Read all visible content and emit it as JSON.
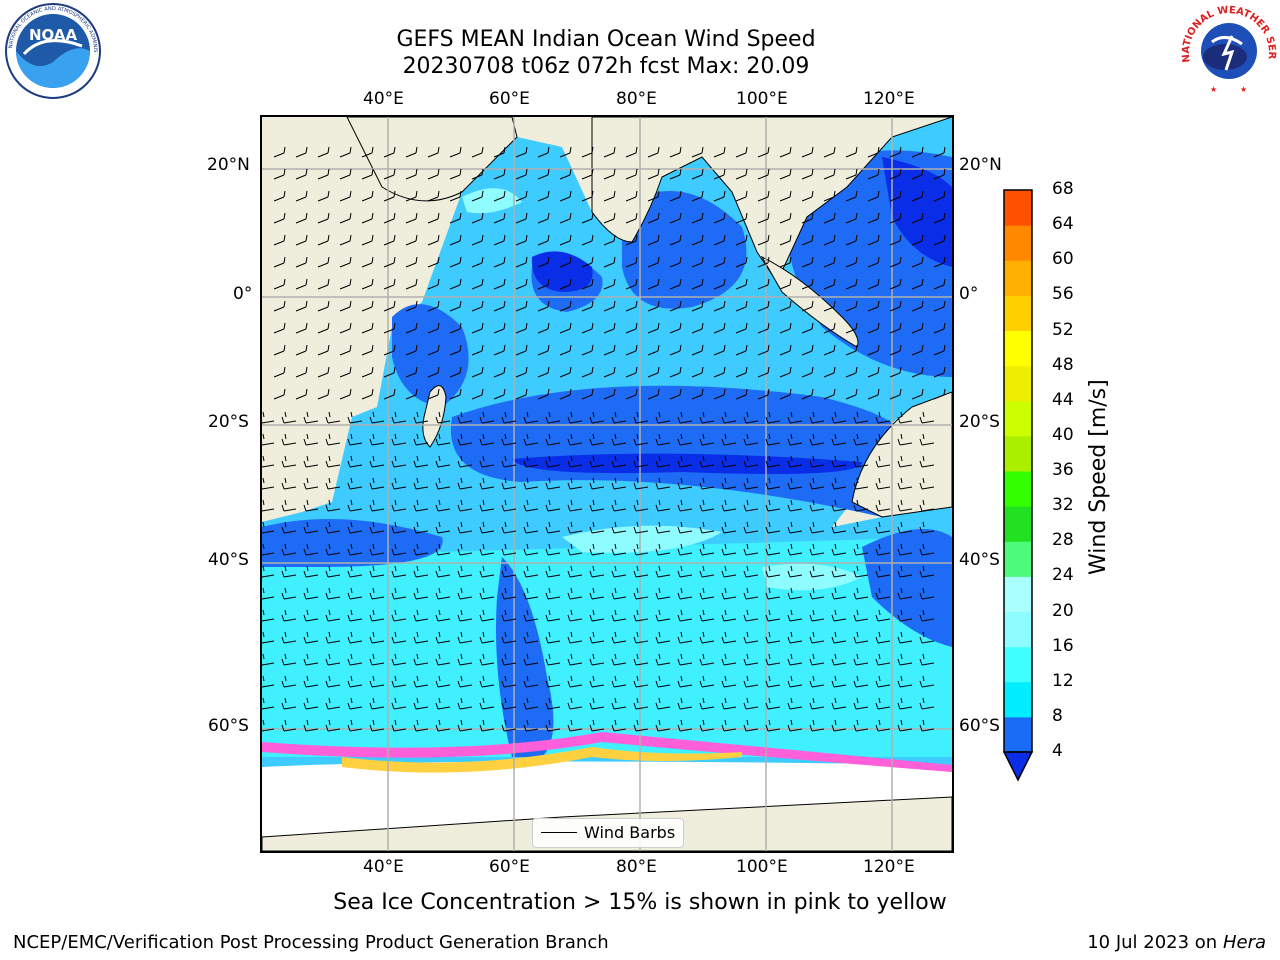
{
  "header": {
    "title_line1": "GEFS MEAN Indian Ocean Wind Speed",
    "title_line2": "20230708 t06z 072h fcst   Max: 20.09"
  },
  "logos": {
    "left": "NOAA",
    "left_ring_text": "NATIONAL OCEANIC AND ATMOSPHERIC ADMINISTRATION · U.S. DEPARTMENT OF COMMERCE",
    "right_ring_text": "NATIONAL WEATHER SERVICE"
  },
  "map": {
    "lon_ticks_top": [
      "40°E",
      "60°E",
      "80°E",
      "100°E",
      "120°E"
    ],
    "lon_ticks_bottom": [
      "40°E",
      "60°E",
      "80°E",
      "100°E",
      "120°E"
    ],
    "lat_ticks_left": [
      "20°N",
      "0°",
      "20°S",
      "40°S",
      "60°S"
    ],
    "lat_ticks_right": [
      "20°N",
      "0°",
      "20°S",
      "40°S",
      "60°S"
    ],
    "legend_label": "Wind Barbs",
    "colors": {
      "land": "#efeedc",
      "ocean_low": "#1e6cf5",
      "ocean_mid": "#3ecbff",
      "ocean_cyan": "#00f0ff",
      "ocean_high": "#8ffcff",
      "ocean_calm": "#0a2ee8",
      "ice_pink": "#ff5fd8",
      "ice_yellow": "#ffd040",
      "ice_shelf": "#ffffff"
    }
  },
  "colorbar": {
    "label": "Wind Speed [m/s]",
    "ticks": [
      "4",
      "8",
      "12",
      "16",
      "20",
      "24",
      "28",
      "32",
      "36",
      "40",
      "44",
      "48",
      "52",
      "56",
      "60",
      "64",
      "68"
    ],
    "colors": [
      "#1a6cf7",
      "#00eeff",
      "#40ffff",
      "#8dfdff",
      "#aaffff",
      "#4dfa7a",
      "#22e022",
      "#33ff00",
      "#aaee00",
      "#ccff00",
      "#eeee00",
      "#ffff00",
      "#ffd000",
      "#ffb000",
      "#ff8800",
      "#ff5000",
      "#ff2000",
      "#ff0000"
    ]
  },
  "caption": "Sea Ice Concentration > 15% is shown in pink to yellow",
  "footer": {
    "left": "NCEP/EMC/Verification Post Processing Product Generation Branch",
    "right_date": "10 Jul 2023 on ",
    "right_machine": "Hera"
  }
}
